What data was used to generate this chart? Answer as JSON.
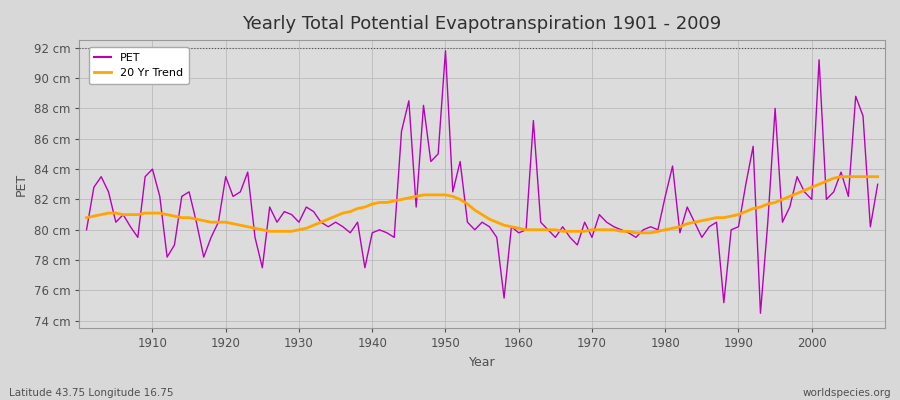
{
  "title": "Yearly Total Potential Evapotranspiration 1901 - 2009",
  "xlabel": "Year",
  "ylabel": "PET",
  "ylim": [
    73.5,
    92.5
  ],
  "yticks": [
    74,
    76,
    78,
    80,
    82,
    84,
    86,
    88,
    90,
    92
  ],
  "xlim": [
    1900,
    2010
  ],
  "xticks": [
    1910,
    1920,
    1930,
    1940,
    1950,
    1960,
    1970,
    1980,
    1990,
    2000
  ],
  "hline_y": 92,
  "bg_color": "#d8d8d8",
  "plot_bg_color": "#dcdcdc",
  "line_color": "#bb00bb",
  "trend_color": "#ffa500",
  "grid_color": "#c8c8c8",
  "title_color": "#303030",
  "label_color": "#505050",
  "footer_left": "Latitude 43.75 Longitude 16.75",
  "footer_right": "worldspecies.org",
  "legend_labels": [
    "PET",
    "20 Yr Trend"
  ],
  "years": [
    1901,
    1902,
    1903,
    1904,
    1905,
    1906,
    1907,
    1908,
    1909,
    1910,
    1911,
    1912,
    1913,
    1914,
    1915,
    1916,
    1917,
    1918,
    1919,
    1920,
    1921,
    1922,
    1923,
    1924,
    1925,
    1926,
    1927,
    1928,
    1929,
    1930,
    1931,
    1932,
    1933,
    1934,
    1935,
    1936,
    1937,
    1938,
    1939,
    1940,
    1941,
    1942,
    1943,
    1944,
    1945,
    1946,
    1947,
    1948,
    1949,
    1950,
    1951,
    1952,
    1953,
    1954,
    1955,
    1956,
    1957,
    1958,
    1959,
    1960,
    1961,
    1962,
    1963,
    1964,
    1965,
    1966,
    1967,
    1968,
    1969,
    1970,
    1971,
    1972,
    1973,
    1974,
    1975,
    1976,
    1977,
    1978,
    1979,
    1980,
    1981,
    1982,
    1983,
    1984,
    1985,
    1986,
    1987,
    1988,
    1989,
    1990,
    1991,
    1992,
    1993,
    1994,
    1995,
    1996,
    1997,
    1998,
    1999,
    2000,
    2001,
    2002,
    2003,
    2004,
    2005,
    2006,
    2007,
    2008,
    2009
  ],
  "pet": [
    80.0,
    82.8,
    83.5,
    82.5,
    80.5,
    81.0,
    80.2,
    79.5,
    83.5,
    84.0,
    82.2,
    78.2,
    79.0,
    82.2,
    82.5,
    80.5,
    78.2,
    79.5,
    80.5,
    83.5,
    82.2,
    82.5,
    83.8,
    79.5,
    77.5,
    81.5,
    80.5,
    81.2,
    81.0,
    80.5,
    81.5,
    81.2,
    80.5,
    80.2,
    80.5,
    80.2,
    79.8,
    80.5,
    77.5,
    79.8,
    80.0,
    79.8,
    79.5,
    86.5,
    88.5,
    81.5,
    88.2,
    84.5,
    85.0,
    91.8,
    82.5,
    84.5,
    80.5,
    80.0,
    80.5,
    80.2,
    79.5,
    75.5,
    80.2,
    79.8,
    80.0,
    87.2,
    80.5,
    80.0,
    79.5,
    80.2,
    79.5,
    79.0,
    80.5,
    79.5,
    81.0,
    80.5,
    80.2,
    80.0,
    79.8,
    79.5,
    80.0,
    80.2,
    80.0,
    82.2,
    84.2,
    79.8,
    81.5,
    80.5,
    79.5,
    80.2,
    80.5,
    75.2,
    80.0,
    80.2,
    83.0,
    85.5,
    74.5,
    80.5,
    88.0,
    80.5,
    81.5,
    83.5,
    82.5,
    82.0,
    91.2,
    82.0,
    82.5,
    83.8,
    82.2,
    88.8,
    87.5,
    80.2,
    83.0
  ],
  "trend": [
    80.8,
    80.9,
    81.0,
    81.1,
    81.1,
    81.0,
    81.0,
    81.0,
    81.1,
    81.1,
    81.1,
    81.0,
    80.9,
    80.8,
    80.8,
    80.7,
    80.6,
    80.5,
    80.5,
    80.5,
    80.4,
    80.3,
    80.2,
    80.1,
    80.0,
    79.9,
    79.9,
    79.9,
    79.9,
    80.0,
    80.1,
    80.3,
    80.5,
    80.7,
    80.9,
    81.1,
    81.2,
    81.4,
    81.5,
    81.7,
    81.8,
    81.8,
    81.9,
    82.0,
    82.1,
    82.2,
    82.3,
    82.3,
    82.3,
    82.3,
    82.2,
    82.0,
    81.7,
    81.3,
    81.0,
    80.7,
    80.5,
    80.3,
    80.2,
    80.1,
    80.0,
    80.0,
    80.0,
    80.0,
    80.0,
    79.9,
    79.9,
    79.9,
    79.9,
    80.0,
    80.0,
    80.0,
    80.0,
    79.9,
    79.9,
    79.8,
    79.8,
    79.8,
    79.9,
    80.0,
    80.1,
    80.2,
    80.4,
    80.5,
    80.6,
    80.7,
    80.8,
    80.8,
    80.9,
    81.0,
    81.2,
    81.4,
    81.5,
    81.7,
    81.8,
    82.0,
    82.2,
    82.4,
    82.6,
    82.8,
    83.0,
    83.2,
    83.4,
    83.5,
    83.5,
    83.5,
    83.5,
    83.5,
    83.5
  ]
}
